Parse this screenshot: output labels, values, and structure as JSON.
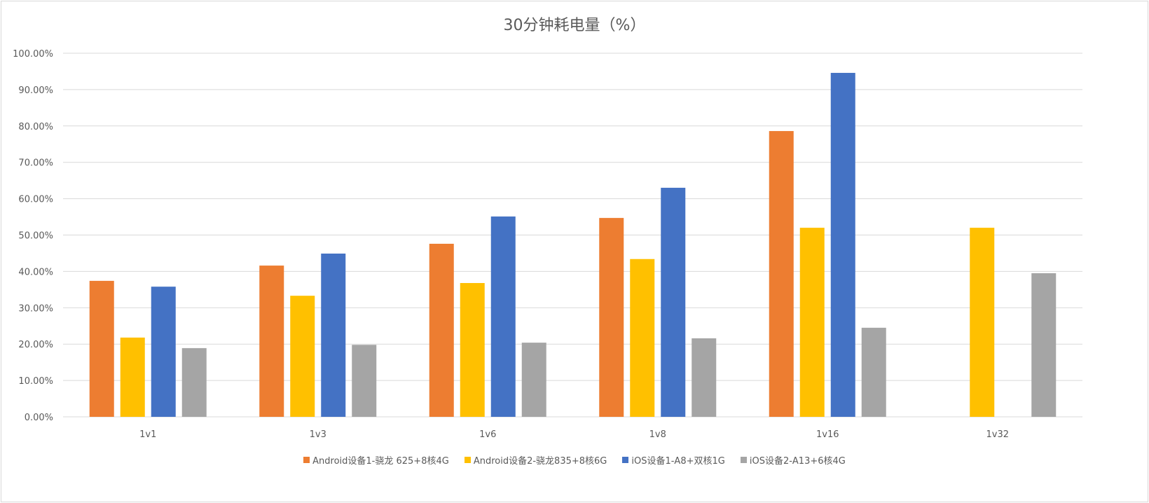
{
  "chart_data": {
    "type": "bar",
    "title": "30分钟耗电量（%）",
    "xlabel": "",
    "ylabel": "",
    "ylim": [
      0,
      100
    ],
    "yticks": [
      "0.00%",
      "10.00%",
      "20.00%",
      "30.00%",
      "40.00%",
      "50.00%",
      "60.00%",
      "70.00%",
      "80.00%",
      "90.00%",
      "100.00%"
    ],
    "grid": true,
    "legend_position": "bottom",
    "categories": [
      "1v1",
      "1v3",
      "1v6",
      "1v8",
      "1v16",
      "1v32"
    ],
    "series": [
      {
        "name": "Android设备1-骁龙 625+8核4G",
        "color": "#ED7D31",
        "values": [
          37.4,
          41.6,
          47.6,
          54.7,
          78.6,
          null
        ]
      },
      {
        "name": "Android设备2-骁龙835+8核6G",
        "color": "#FFC000",
        "values": [
          21.8,
          33.3,
          36.8,
          43.4,
          52.0,
          52.0
        ]
      },
      {
        "name": "iOS设备1-A8+双核1G",
        "color": "#4472C4",
        "values": [
          35.8,
          44.9,
          55.1,
          63.0,
          94.6,
          null
        ]
      },
      {
        "name": "iOS设备2-A13+6核4G",
        "color": "#A5A5A5",
        "values": [
          18.9,
          19.8,
          20.4,
          21.6,
          24.5,
          39.5
        ]
      }
    ]
  }
}
